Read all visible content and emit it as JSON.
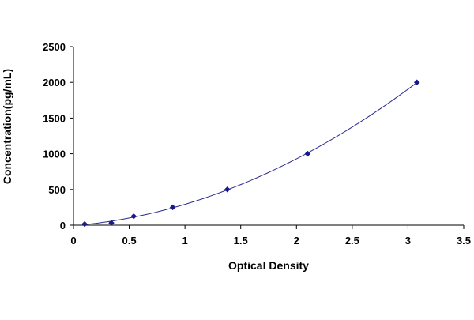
{
  "chart_data": {
    "type": "scatter",
    "title": "",
    "xlabel": "Optical Density",
    "ylabel": "Concentration(pg/mL)",
    "xlim": [
      0,
      3.5
    ],
    "ylim": [
      0,
      2500
    ],
    "x_ticks": [
      "0",
      "0.5",
      "1",
      "1.5",
      "2",
      "2.5",
      "3",
      "3.5"
    ],
    "y_ticks": [
      "0",
      "500",
      "1000",
      "1500",
      "2000",
      "2500"
    ],
    "grid": false,
    "legend": "none",
    "series": [
      {
        "x": [
          0.1,
          0.34,
          0.54,
          0.89,
          1.38,
          2.1,
          3.08
        ],
        "y": [
          15.6,
          31.2,
          125,
          250,
          500,
          1000,
          2000
        ],
        "marker": "diamond",
        "trendline": "smooth curve"
      }
    ],
    "colors": {
      "marker": "#1a1a8c",
      "line": "#2b2b8f",
      "axis": "#000000"
    }
  }
}
